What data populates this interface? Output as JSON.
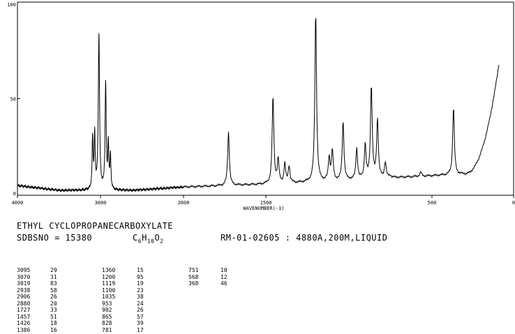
{
  "chart_data": {
    "type": "line",
    "title": "",
    "xlabel": "WAVENUMBER(-1)",
    "ylabel": "",
    "xlim": [
      4000,
      0
    ],
    "ylim": [
      0,
      100
    ],
    "x_ticks": [
      "4000",
      "3000",
      "2000",
      "1500",
      "500",
      "0"
    ],
    "y_ticks": [
      "100",
      "50",
      "0"
    ],
    "peaks": [
      {
        "x": 3095,
        "y": 29
      },
      {
        "x": 3070,
        "y": 31
      },
      {
        "x": 3019,
        "y": 83
      },
      {
        "x": 2938,
        "y": 58
      },
      {
        "x": 2906,
        "y": 26
      },
      {
        "x": 2880,
        "y": 20
      },
      {
        "x": 1727,
        "y": 33
      },
      {
        "x": 1457,
        "y": 51
      },
      {
        "x": 1426,
        "y": 18
      },
      {
        "x": 1386,
        "y": 16
      },
      {
        "x": 1360,
        "y": 15
      },
      {
        "x": 1200,
        "y": 95
      },
      {
        "x": 1119,
        "y": 19
      },
      {
        "x": 1100,
        "y": 23
      },
      {
        "x": 1035,
        "y": 38
      },
      {
        "x": 953,
        "y": 24
      },
      {
        "x": 902,
        "y": 26
      },
      {
        "x": 865,
        "y": 57
      },
      {
        "x": 828,
        "y": 39
      },
      {
        "x": 781,
        "y": 17
      },
      {
        "x": 751,
        "y": 10
      },
      {
        "x": 568,
        "y": 12
      },
      {
        "x": 368,
        "y": 46
      }
    ]
  },
  "header": {
    "compound": "ETHYL CYCLOPROPANECARBOXYLATE",
    "sdbs": "SDBSNO = 15380",
    "formula_c": "C",
    "formula_c_sub": "6",
    "formula_h": "H",
    "formula_h_sub": "10",
    "formula_o": "O",
    "formula_o_sub": "2",
    "method": "RM-01-02605 : 4880A,200M,LIQUID"
  },
  "peak_table": {
    "col1": {
      "wn": [
        "3095",
        "3070",
        "3019",
        "2938",
        "2906",
        "2880",
        "1727",
        "1457",
        "1426",
        "1386"
      ],
      "int": [
        "29",
        "31",
        "83",
        "58",
        "26",
        "20",
        "33",
        "51",
        "18",
        "16"
      ]
    },
    "col2": {
      "wn": [
        "1360",
        "1200",
        "1119",
        "1100",
        "1035",
        "953",
        "902",
        "865",
        "828",
        "781"
      ],
      "int": [
        "15",
        "95",
        "19",
        "23",
        "38",
        "24",
        "26",
        "57",
        "39",
        "17"
      ]
    },
    "col3": {
      "wn": [
        "751",
        "568",
        "368"
      ],
      "int": [
        "10",
        "12",
        "46"
      ]
    }
  }
}
